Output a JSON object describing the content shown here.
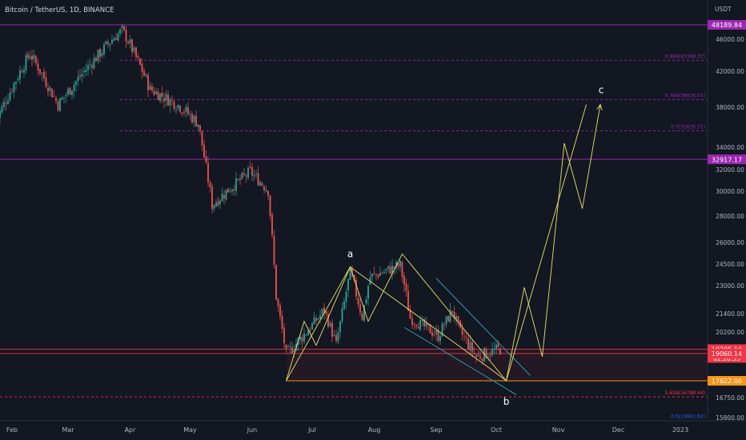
{
  "title": "Bitcoin / TetherUS, 1D, BINANCE",
  "currency": "USDT",
  "colors": {
    "background": "#131722",
    "up": "#26a69a",
    "down": "#ef5350",
    "wave": "#e6e36c",
    "channel": "#2f9fb0",
    "level_purple": "#9c27b0",
    "price_red": "#f23645",
    "price_orange": "#f7931a",
    "label_text": "#ffffff"
  },
  "chart_data": {
    "type": "candlestick",
    "x_labels": [
      "Feb",
      "Mar",
      "Apr",
      "May",
      "Jun",
      "Jul",
      "Aug",
      "Sep",
      "Oct",
      "Nov",
      "Dec",
      "2023"
    ],
    "y_ticks": [
      "46000.00",
      "42000.00",
      "38000.00",
      "34000.00",
      "32000.00",
      "30000.00",
      "28000.00",
      "26000.00",
      "24500.00",
      "23000.00",
      "21400.00",
      "20200.00",
      "16750.00",
      "15800.00"
    ],
    "price_tags": [
      {
        "value": 48189.84,
        "label": "48189.84",
        "color": "#9c27b0"
      },
      {
        "value": 32917.17,
        "label": "32917.17",
        "color": "#9c27b0"
      },
      {
        "value": 19295.1,
        "label": "19295.10",
        "sublabel": "02:20:35",
        "color": "#f23645"
      },
      {
        "value": 19060.14,
        "label": "19060.14",
        "color": "#f23645"
      },
      {
        "value": 17622.0,
        "label": "17622.00",
        "color": "#f7931a"
      }
    ],
    "fib_levels": [
      {
        "value": 43368.37,
        "label": "0.886(43368.37)",
        "color": "#9c27b0"
      },
      {
        "value": 38836.07,
        "label": "0.786(38836.07)",
        "color": "#9c27b0"
      },
      {
        "value": 35635.71,
        "label": "0.7(35635.71)",
        "color": "#9c27b0"
      },
      {
        "value": 16788.44,
        "label": "1.618(16788.44)",
        "color": "#f23645"
      },
      {
        "value": 15661.62,
        "label": "0.5(15661.62)",
        "color": "#2962ff"
      }
    ],
    "wave_labels": [
      "a",
      "b",
      "c"
    ],
    "anchors": [
      {
        "date": "2022-01-24",
        "close": 36600
      },
      {
        "date": "2022-02-10",
        "close": 44200
      },
      {
        "date": "2022-02-24",
        "close": 38300
      },
      {
        "date": "2022-03-28",
        "close": 47400
      },
      {
        "date": "2022-04-11",
        "close": 40000
      },
      {
        "date": "2022-04-26",
        "close": 38100
      },
      {
        "date": "2022-05-05",
        "close": 36400
      },
      {
        "date": "2022-05-12",
        "close": 28900
      },
      {
        "date": "2022-05-31",
        "close": 31800
      },
      {
        "date": "2022-06-09",
        "close": 30100
      },
      {
        "date": "2022-06-13",
        "close": 22400
      },
      {
        "date": "2022-06-18",
        "close": 19000
      },
      {
        "date": "2022-06-28",
        "close": 20200
      },
      {
        "date": "2022-07-07",
        "close": 21600
      },
      {
        "date": "2022-07-13",
        "close": 19500
      },
      {
        "date": "2022-07-20",
        "close": 23900
      },
      {
        "date": "2022-07-26",
        "close": 21200
      },
      {
        "date": "2022-07-30",
        "close": 23600
      },
      {
        "date": "2022-08-14",
        "close": 24400
      },
      {
        "date": "2022-08-19",
        "close": 21100
      },
      {
        "date": "2022-09-02",
        "close": 20000
      },
      {
        "date": "2022-09-09",
        "close": 21600
      },
      {
        "date": "2022-09-13",
        "close": 20200
      },
      {
        "date": "2022-09-21",
        "close": 18900
      },
      {
        "date": "2022-10-03",
        "close": 19300
      }
    ],
    "wave_paths": [
      [
        [
          "2022-06-18",
          17622
        ],
        [
          "2022-07-20",
          24300
        ],
        [
          "2022-09-29",
          18180
        ],
        [
          "2022-10-06",
          17622
        ],
        [
          "2022-11-15",
          38300
        ]
      ],
      [
        [
          "2022-06-18",
          17622
        ],
        [
          "2022-06-27",
          20900
        ],
        [
          "2022-07-03",
          19500
        ],
        [
          "2022-07-20",
          24300
        ],
        [
          "2022-07-29",
          20900
        ],
        [
          "2022-08-15",
          25200
        ],
        [
          "2022-10-06",
          17622
        ],
        [
          "2022-10-15",
          22900
        ],
        [
          "2022-10-24",
          18900
        ],
        [
          "2022-11-04",
          34400
        ],
        [
          "2022-11-13",
          28600
        ],
        [
          "2022-11-22",
          38300
        ]
      ]
    ],
    "channel": [
      [
        [
          "2022-09-01",
          23500
        ],
        [
          "2022-10-18",
          17900
        ]
      ],
      [
        [
          "2022-08-16",
          20500
        ],
        [
          "2022-10-11",
          16900
        ]
      ]
    ],
    "support_box": {
      "from": "2022-06-18",
      "to": "2022-12-31",
      "low": 17622,
      "high": 19270
    }
  }
}
